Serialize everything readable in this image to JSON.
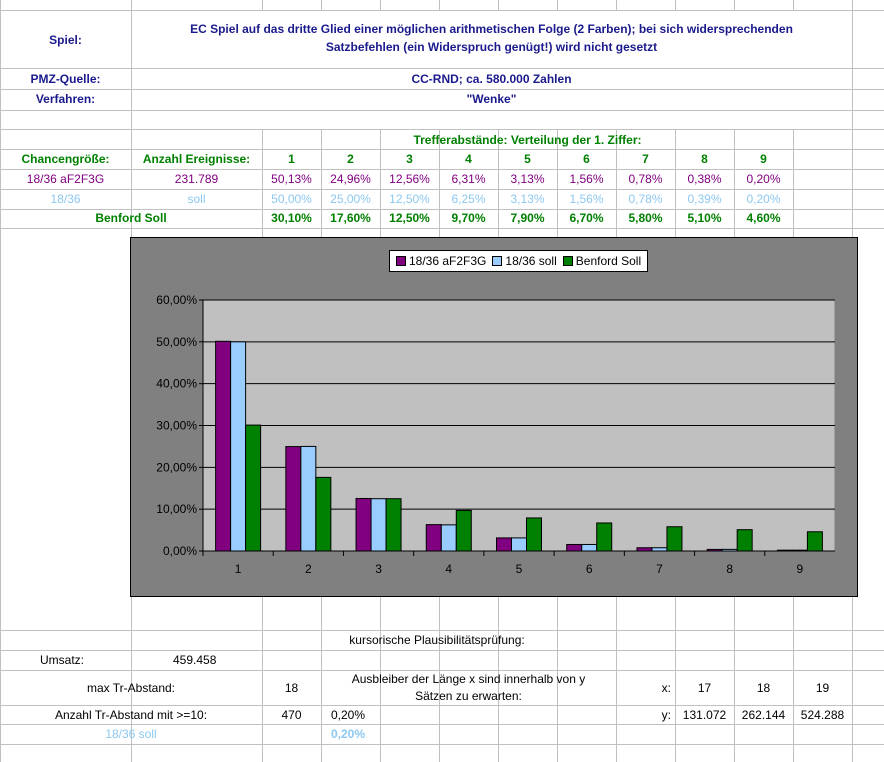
{
  "header": {
    "spiel_label": "Spiel:",
    "spiel_text_line1": "EC Spiel auf das dritte Glied einer möglichen arithmetischen Folge (2 Farben); bei sich widersprechenden",
    "spiel_text_line2": "Satzbefehlen (ein Widerspruch genügt!) wird nicht gesetzt",
    "pmz_label": "PMZ-Quelle:",
    "pmz_value": "CC-RND; ca. 580.000 Zahlen",
    "verfahren_label": "Verfahren:",
    "verfahren_value": "\"Wenke\""
  },
  "table": {
    "section_title": "Trefferabstände: Verteilung der 1. Ziffer:",
    "col_chance": "Chancengröße:",
    "col_anzahl": "Anzahl Ereignisse:",
    "digits": [
      "1",
      "2",
      "3",
      "4",
      "5",
      "6",
      "7",
      "8",
      "9"
    ],
    "row1": {
      "label": "18/36 aF2F3G",
      "count": "231.789",
      "values": [
        "50,13%",
        "24,96%",
        "12,56%",
        "6,31%",
        "3,13%",
        "1,56%",
        "0,78%",
        "0,38%",
        "0,20%"
      ]
    },
    "row2": {
      "label": "18/36",
      "count": "soll",
      "values": [
        "50,00%",
        "25,00%",
        "12,50%",
        "6,25%",
        "3,13%",
        "1,56%",
        "0,78%",
        "0,39%",
        "0,20%"
      ]
    },
    "row3": {
      "label": "Benford Soll",
      "values": [
        "30,10%",
        "17,60%",
        "12,50%",
        "9,70%",
        "7,90%",
        "6,70%",
        "5,80%",
        "5,10%",
        "4,60%"
      ]
    }
  },
  "chart_data": {
    "type": "bar",
    "categories": [
      "1",
      "2",
      "3",
      "4",
      "5",
      "6",
      "7",
      "8",
      "9"
    ],
    "series": [
      {
        "name": "18/36 aF2F3G",
        "color": "#800080",
        "values": [
          50.13,
          24.96,
          12.56,
          6.31,
          3.13,
          1.56,
          0.78,
          0.38,
          0.2
        ]
      },
      {
        "name": "18/36 soll",
        "color": "#99ccff",
        "values": [
          50.0,
          25.0,
          12.5,
          6.25,
          3.13,
          1.56,
          0.78,
          0.39,
          0.2
        ]
      },
      {
        "name": "Benford Soll",
        "color": "#008000",
        "values": [
          30.1,
          17.6,
          12.5,
          9.7,
          7.9,
          6.7,
          5.8,
          5.1,
          4.6
        ]
      }
    ],
    "ylim": [
      0,
      60
    ],
    "yticks": [
      "0,00%",
      "10,00%",
      "20,00%",
      "30,00%",
      "40,00%",
      "50,00%",
      "60,00%"
    ],
    "plot_background": "#c0c0c0",
    "chart_background": "#808080",
    "grid": true,
    "legend": "top"
  },
  "bottom": {
    "title": "kursorische Plausibilitätsprüfung:",
    "umsatz_label": "Umsatz:",
    "umsatz_value": "459.458",
    "max_label": "max Tr-Abstand:",
    "max_value": "18",
    "ausbleiber_line1": "Ausbleiber der Länge x sind innerhalb von y",
    "ausbleiber_line2": "Sätzen zu erwarten:",
    "x_label": "x:",
    "x_values": [
      "17",
      "18",
      "19"
    ],
    "anzahl_label": "Anzahl Tr-Abstand mit >=10:",
    "anzahl_value": "470",
    "anzahl_pct": "0,20%",
    "y_label": "y:",
    "y_values": [
      "131.072",
      "262.144",
      "524.288"
    ],
    "soll_label": "18/36 soll",
    "soll_pct": "0,20%"
  }
}
